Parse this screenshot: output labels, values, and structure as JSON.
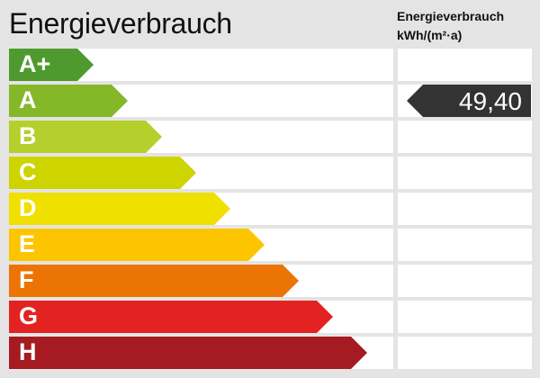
{
  "title": "Energieverbrauch",
  "column_header": {
    "line1": "Energieverbrauch",
    "line2": "kWh/(m²·a)"
  },
  "classes": [
    {
      "label": "A+",
      "color": "#4f9a2e"
    },
    {
      "label": "A",
      "color": "#84b829"
    },
    {
      "label": "B",
      "color": "#b5cf2c"
    },
    {
      "label": "C",
      "color": "#cdd400"
    },
    {
      "label": "D",
      "color": "#f0e000"
    },
    {
      "label": "E",
      "color": "#fcc500"
    },
    {
      "label": "F",
      "color": "#ec7404"
    },
    {
      "label": "G",
      "color": "#e32322"
    },
    {
      "label": "H",
      "color": "#a61b21"
    }
  ],
  "value": {
    "text": "49,40",
    "class_index": 1,
    "color": "#333333"
  }
}
